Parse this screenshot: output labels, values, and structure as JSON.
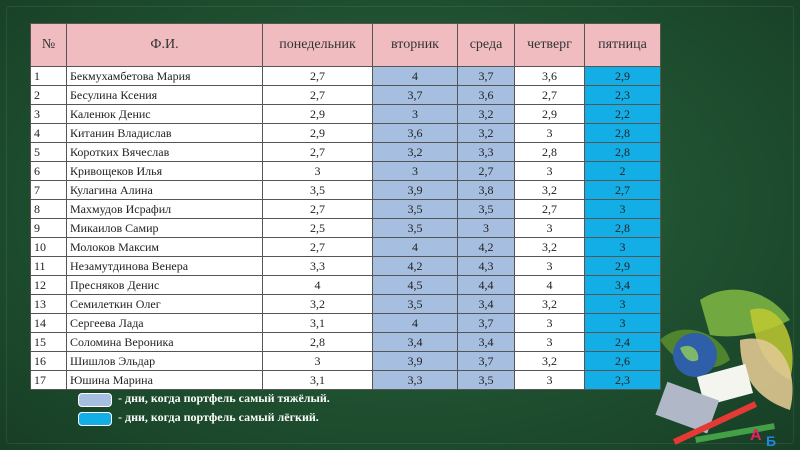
{
  "table": {
    "headers": [
      "№",
      "Ф.И.",
      "понедельник",
      "вторник",
      "среда",
      "четверг",
      "пятница"
    ],
    "rows": [
      [
        "1",
        "Бекмухамбетова Мария",
        "2,7",
        "4",
        "3,7",
        "3,6",
        "2,9"
      ],
      [
        "2",
        "Бесулина Ксения",
        "2,7",
        "3,7",
        "3,6",
        "2,7",
        "2,3"
      ],
      [
        "3",
        "Каленюк Денис",
        "2,9",
        "3",
        "3,2",
        "2,9",
        "2,2"
      ],
      [
        "4",
        "Китанин Владислав",
        "2,9",
        "3,6",
        "3,2",
        "3",
        "2,8"
      ],
      [
        "5",
        "Коротких Вячеслав",
        "2,7",
        "3,2",
        "3,3",
        "2,8",
        "2,8"
      ],
      [
        "6",
        "Кривощеков Илья",
        "3",
        "3",
        "2,7",
        "3",
        "2"
      ],
      [
        "7",
        "Кулагина Алина",
        "3,5",
        "3,9",
        "3,8",
        "3,2",
        "2,7"
      ],
      [
        "8",
        "Махмудов Исрафил",
        "2,7",
        "3,5",
        "3,5",
        "2,7",
        "3"
      ],
      [
        "9",
        "Микаилов Самир",
        "2,5",
        "3,5",
        "3",
        "3",
        "2,8"
      ],
      [
        "10",
        "Молоков Максим",
        "2,7",
        "4",
        "4,2",
        "3,2",
        "3"
      ],
      [
        "11",
        "Незамутдинова Венера",
        "3,3",
        "4,2",
        "4,3",
        "3",
        "2,9"
      ],
      [
        "12",
        "Пресняков Денис",
        "4",
        "4,5",
        "4,4",
        "4",
        "3,4"
      ],
      [
        "13",
        "Семилеткин Олег",
        "3,2",
        "3,5",
        "3,4",
        "3,2",
        "3"
      ],
      [
        "14",
        "Сергеева Лада",
        "3,1",
        "4",
        "3,7",
        "3",
        "3"
      ],
      [
        "15",
        "Соломина Вероника",
        "2,8",
        "3,4",
        "3,4",
        "3",
        "2,4"
      ],
      [
        "16",
        "Шишлов Эльдар",
        "3",
        "3,9",
        "3,7",
        "3,2",
        "2,6"
      ],
      [
        "17",
        "Юшина Марина",
        "3,1",
        "3,3",
        "3,5",
        "3",
        "2,3"
      ]
    ]
  },
  "legend": {
    "heavy_text": " - дни, когда портфель самый тяжёлый.",
    "light_text": " - дни, когда портфель самый лёгкий.",
    "heavy_color": "#a6bedf",
    "light_color": "#14aee6"
  },
  "colors": {
    "header_bg": "#f0bcc0",
    "board": "#1f5030"
  }
}
